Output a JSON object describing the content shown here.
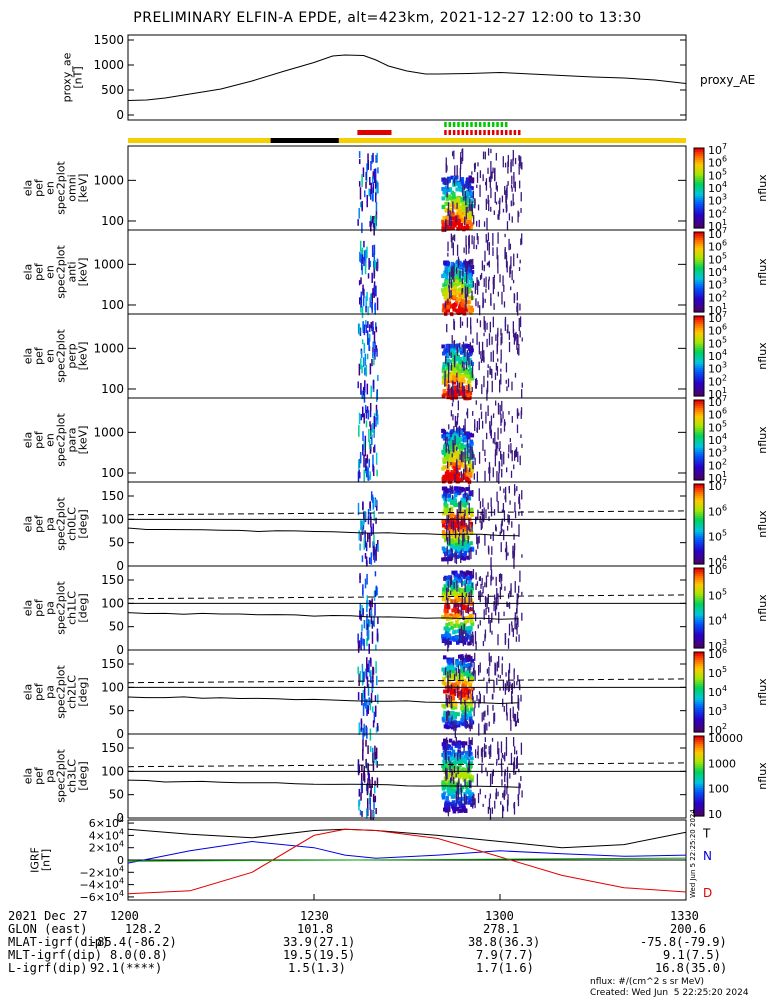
{
  "title": "PRELIMINARY ELFIN-A EPDE, alt=423km, 2021-12-27 12:00 to 13:30",
  "footer": {
    "units_note": "nflux: #/(cm^2 s sr MeV)",
    "created": "Created: Wed Jun  5 22:25:20 2024",
    "side_stamp": "Wed Jun  5 22:25:20 2024"
  },
  "colors": {
    "yellow_bar": "#f5d000",
    "black_bar": "#000000",
    "red_marks": "#e00000",
    "green_marks": "#00c800"
  },
  "status_bars": {
    "yellow_ranges": [
      [
        0,
        23
      ],
      [
        34,
        90
      ]
    ],
    "black_ranges": [
      [
        23,
        34
      ]
    ],
    "red_solid": [
      [
        37,
        42.5
      ]
    ],
    "red_dotted": [
      [
        51,
        63
      ]
    ],
    "green_dotted": [
      [
        51,
        61
      ]
    ]
  },
  "chart_data": [
    {
      "type": "line",
      "name": "proxy_ae",
      "ylabel": "proxy_ae\n[nT]",
      "legend": "proxy_AE",
      "yticks": [
        "1500",
        "1000",
        "500",
        "0"
      ],
      "ylim": [
        -100,
        1600
      ],
      "x_minutes": [
        0,
        3,
        6,
        10,
        15,
        20,
        25,
        30,
        33,
        35,
        38,
        40,
        42,
        45,
        48,
        50,
        55,
        60,
        65,
        70,
        75,
        80,
        85,
        90
      ],
      "values": [
        290,
        300,
        340,
        420,
        520,
        680,
        870,
        1050,
        1180,
        1200,
        1190,
        1100,
        980,
        880,
        820,
        820,
        830,
        850,
        820,
        790,
        760,
        740,
        700,
        630
      ]
    },
    {
      "type": "heatmap",
      "name": "spec2plot_omni",
      "ylabel": "ela\npef\nen\nspec2plot\nomni\n[keV]",
      "yticks": [
        "1000",
        "100"
      ],
      "ylog": true,
      "ylim": [
        60,
        7000
      ],
      "colorbar": {
        "label": "nflux",
        "ticks": [
          "10^7",
          "10^6",
          "10^5",
          "10^4",
          "10^3",
          "10^2",
          "10^1"
        ]
      }
    },
    {
      "type": "heatmap",
      "name": "spec2plot_anti",
      "ylabel": "ela\npef\nen\nspec2plot\nanti\n[keV]",
      "yticks": [
        "1000",
        "100"
      ],
      "ylog": true,
      "ylim": [
        60,
        7000
      ],
      "colorbar": {
        "label": "nflux",
        "ticks": [
          "10^7",
          "10^6",
          "10^5",
          "10^4",
          "10^3",
          "10^2",
          "10^1"
        ]
      }
    },
    {
      "type": "heatmap",
      "name": "spec2plot_perp",
      "ylabel": "ela\npef\nen\nspec2plot\nperp\n[keV]",
      "yticks": [
        "1000",
        "100"
      ],
      "ylog": true,
      "ylim": [
        60,
        7000
      ],
      "colorbar": {
        "label": "nflux",
        "ticks": [
          "10^7",
          "10^6",
          "10^5",
          "10^4",
          "10^3",
          "10^2",
          "10^1"
        ]
      }
    },
    {
      "type": "heatmap",
      "name": "spec2plot_para",
      "ylabel": "ela\npef\nen\nspec2plot\npara\n[keV]",
      "yticks": [
        "1000",
        "100"
      ],
      "ylog": true,
      "ylim": [
        60,
        7000
      ],
      "colorbar": {
        "label": "nflux",
        "ticks": [
          "10^7",
          "10^6",
          "10^5",
          "10^4",
          "10^3",
          "10^2",
          "10^1"
        ]
      }
    },
    {
      "type": "heatmap",
      "name": "spec2plot_ch0LC",
      "ylabel": "ela\npef\npa\nspec2plot\nch0LC\n[deg]",
      "yticks": [
        "150",
        "100",
        "50",
        "0"
      ],
      "ylim": [
        0,
        180
      ],
      "colorbar": {
        "label": "nflux",
        "ticks": [
          "10^7",
          "10^6",
          "10^5",
          "10^4"
        ]
      }
    },
    {
      "type": "heatmap",
      "name": "spec2plot_ch1LC",
      "ylabel": "ela\npef\npa\nspec2plot\nch1LC\n[deg]",
      "yticks": [
        "150",
        "100",
        "50",
        "0"
      ],
      "ylim": [
        0,
        180
      ],
      "colorbar": {
        "label": "nflux",
        "ticks": [
          "10^6",
          "10^5",
          "10^4",
          "10^3"
        ]
      }
    },
    {
      "type": "heatmap",
      "name": "spec2plot_ch2LC",
      "ylabel": "ela\npef\npa\nspec2plot\nch2LC\n[deg]",
      "yticks": [
        "150",
        "100",
        "50",
        "0"
      ],
      "ylim": [
        0,
        180
      ],
      "colorbar": {
        "label": "nflux",
        "ticks": [
          "10^6",
          "10^5",
          "10^4",
          "10^3",
          "10^2"
        ]
      }
    },
    {
      "type": "heatmap",
      "name": "spec2plot_ch3LC",
      "ylabel": "ela\npef\npa\nspec2plot\nch3LC\n[deg]",
      "yticks": [
        "150",
        "100",
        "50",
        "0"
      ],
      "ylim": [
        0,
        180
      ],
      "colorbar": {
        "label": "nflux",
        "ticks": [
          "10000",
          "1000",
          "100",
          "10"
        ]
      }
    },
    {
      "type": "line",
      "name": "IGRF",
      "ylabel": "IGRF\n[nT]",
      "yticks": [
        "6×10^4",
        "4×10^4",
        "2×10^4",
        "0",
        "−2×10^4",
        "−4×10^4",
        "−6×10^4"
      ],
      "ylim": [
        -65000,
        65000
      ],
      "x_minutes": [
        0,
        10,
        20,
        30,
        35,
        40,
        50,
        60,
        70,
        80,
        90
      ],
      "series": [
        {
          "name": "T",
          "color": "#000000",
          "values": [
            50000,
            42000,
            36000,
            48000,
            50000,
            48000,
            40000,
            30000,
            20000,
            25000,
            45000
          ]
        },
        {
          "name": "N",
          "color": "#0000e0",
          "values": [
            -5000,
            15000,
            30000,
            20000,
            8000,
            3000,
            8000,
            15000,
            10000,
            6000,
            8000
          ]
        },
        {
          "name": "D",
          "color": "#e00000",
          "values": [
            -55000,
            -50000,
            -20000,
            40000,
            50000,
            48000,
            35000,
            5000,
            -25000,
            -45000,
            -52000
          ]
        }
      ]
    }
  ],
  "time_axis": {
    "date_label": "2021 Dec 27",
    "ticks": [
      "1200",
      "1230",
      "1300",
      "1330"
    ],
    "rows": [
      {
        "label": "GLON (east)",
        "values": [
          "128.2",
          "101.8",
          "278.1",
          "200.6"
        ]
      },
      {
        "label": "MLAT-igrf(dip)",
        "values": [
          "-85.4(-86.2)",
          "33.9(27.1)",
          "38.8(36.3)",
          "-75.8(-79.9)"
        ]
      },
      {
        "label": "MLT-igrf(dip)",
        "values": [
          "8.0(0.8)",
          "19.5(19.5)",
          "7.9(7.7)",
          "9.1(7.5)"
        ]
      },
      {
        "label": "L-igrf(dip)",
        "values": [
          "92.1(****)",
          "1.5(1.3)",
          "1.7(1.6)",
          "16.8(35.0)"
        ]
      }
    ]
  }
}
